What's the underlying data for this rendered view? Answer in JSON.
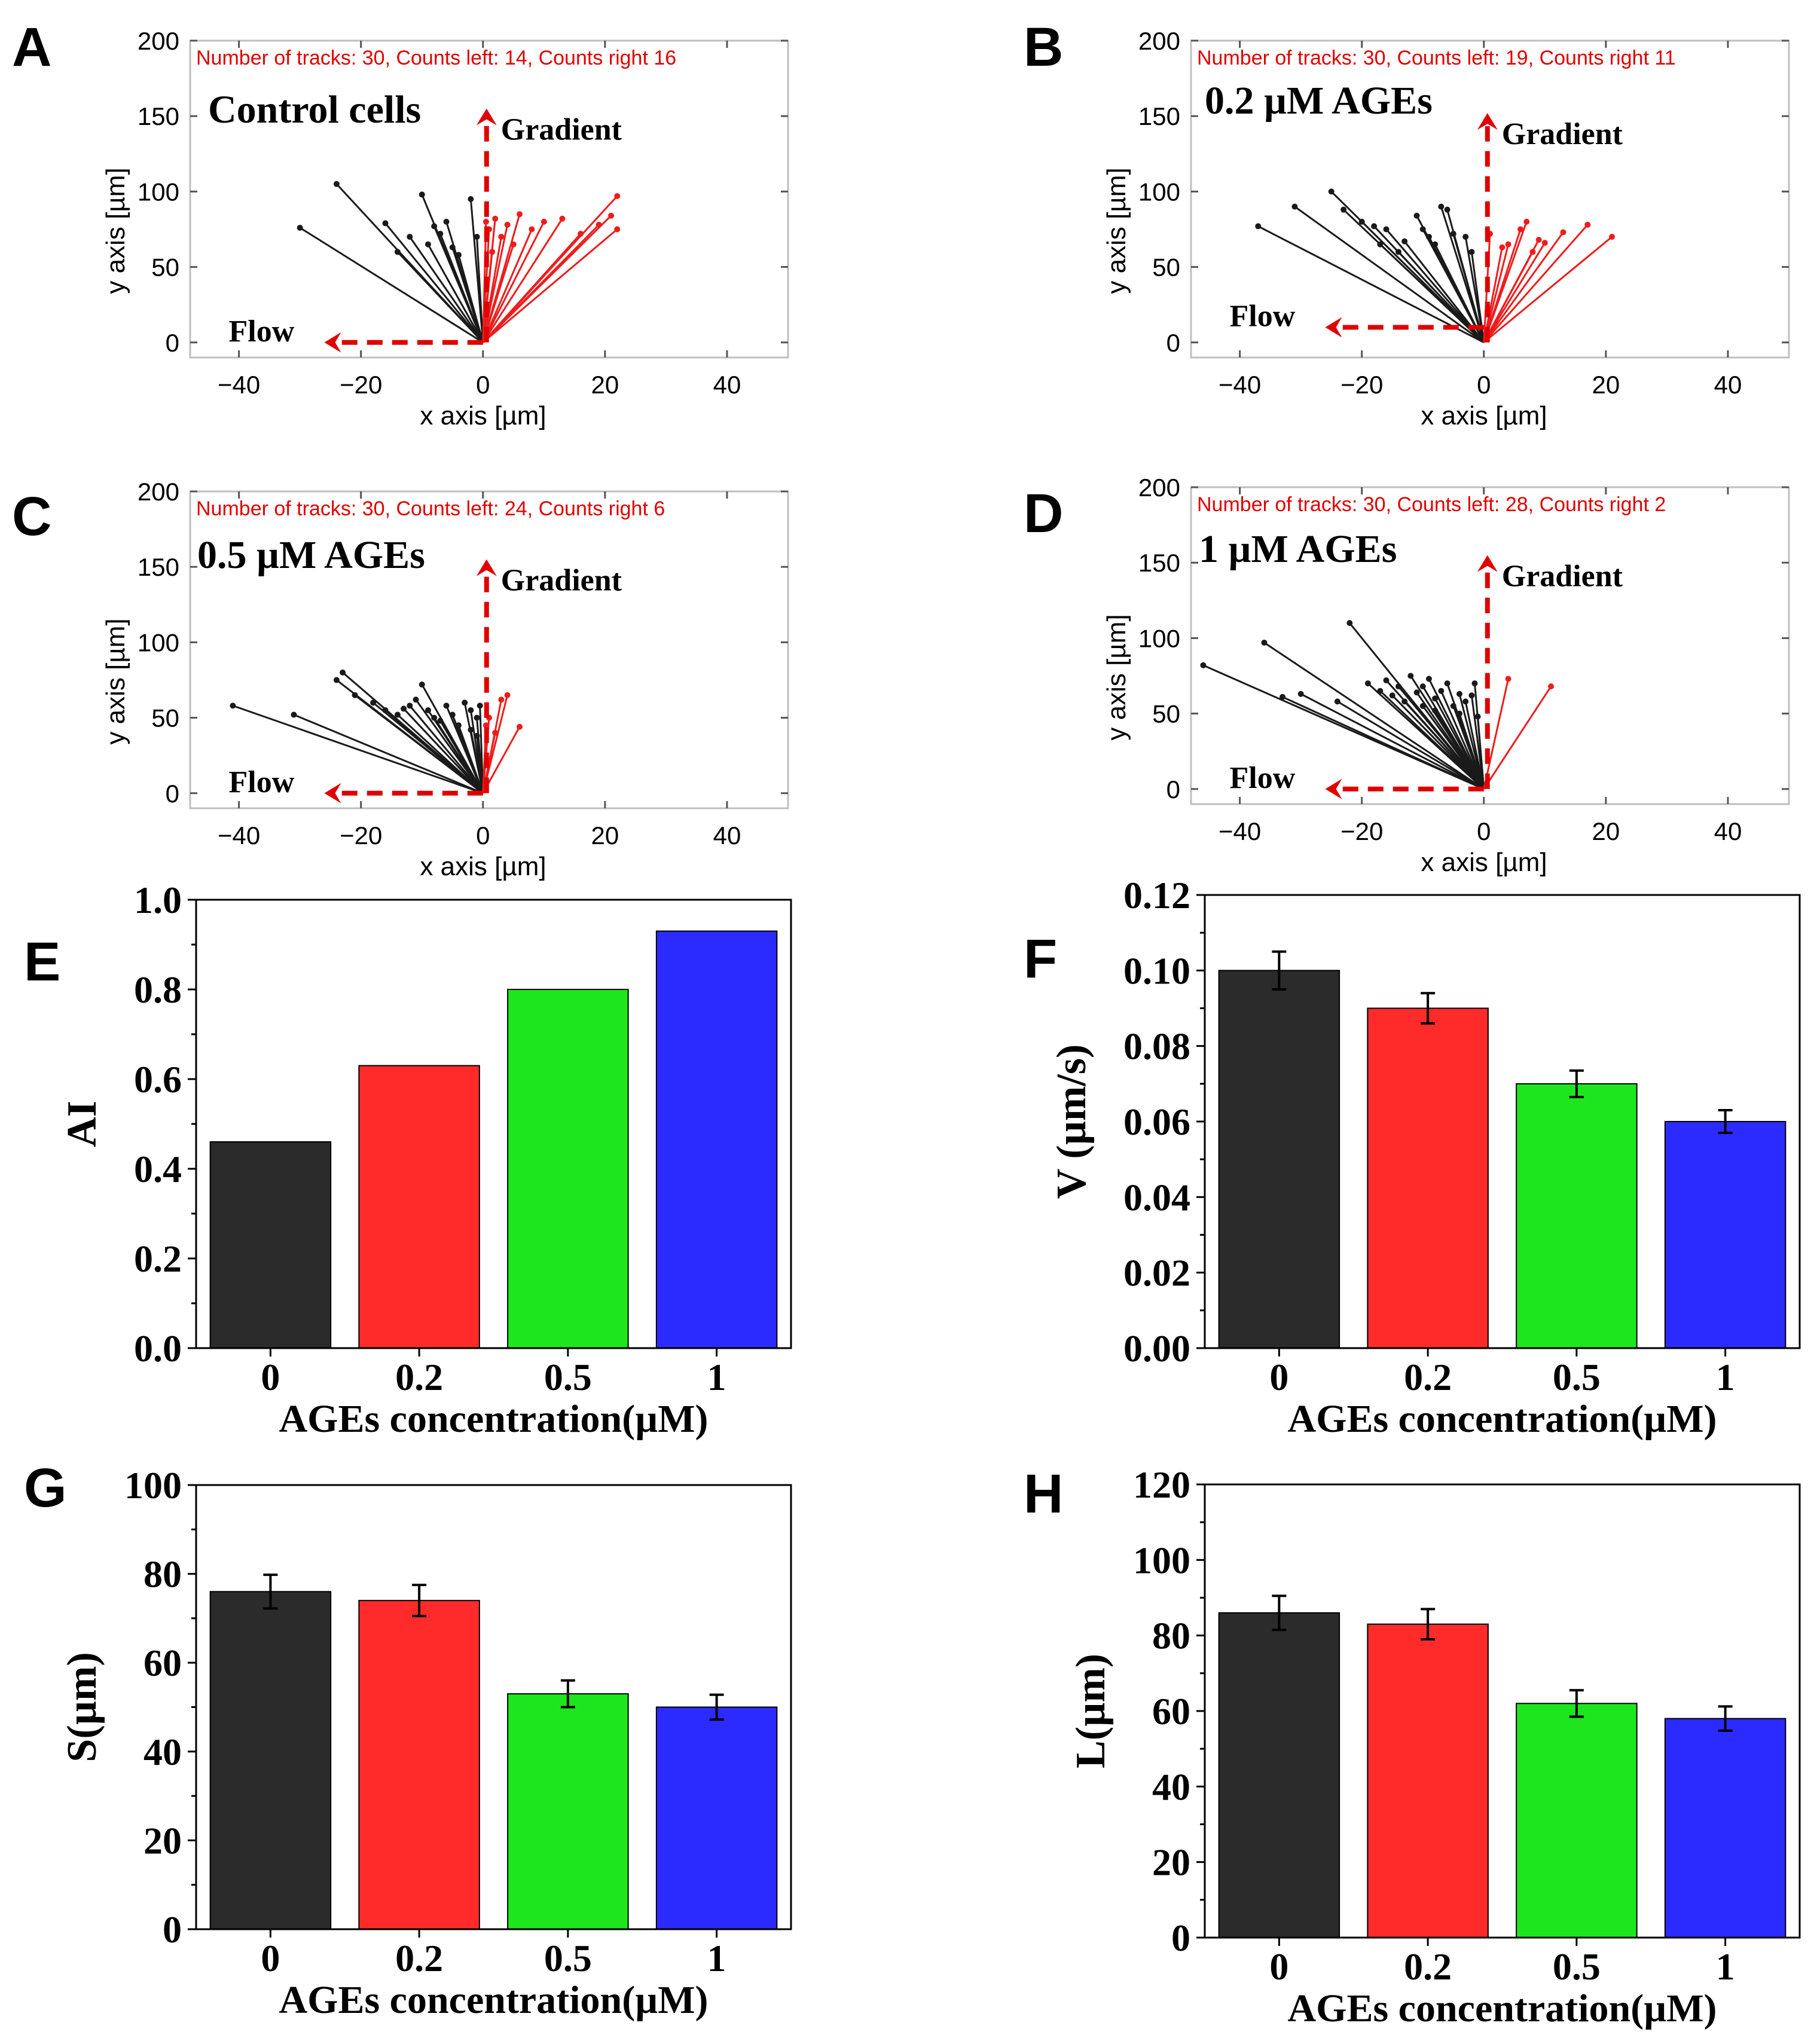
{
  "figure": {
    "colors": {
      "black_track": "#1a1a1a",
      "red_track": "#ee1c1c",
      "bar_0": "#2b2b2b",
      "bar_0_2": "#ff2b2b",
      "bar_0_5": "#1ee61e",
      "bar_1": "#2b2bff",
      "annotation_red": "#e00000",
      "arrow_red": "#e00000"
    }
  },
  "chart_data": [
    {
      "panel": "A",
      "type": "scatter",
      "subtype": "trajectory-plot",
      "title": "Control cells",
      "info": "Number of tracks: 30, Counts left: 14, Counts right 16",
      "xlabel": "x axis [µm]",
      "ylabel": "y axis [µm]",
      "xlim": [
        -48,
        50
      ],
      "ylim": [
        -10,
        200
      ],
      "xticks": [
        -40,
        -20,
        0,
        20,
        40
      ],
      "xtick_labels": [
        "−40",
        "−20",
        "0",
        "20",
        "40"
      ],
      "yticks": [
        0,
        50,
        100,
        150,
        200
      ],
      "ytick_labels": [
        "0",
        "50",
        "100",
        "150",
        "200"
      ],
      "gradient_label": "Gradient",
      "flow_label": "Flow",
      "arrow_gradient_tip": [
        0,
        155
      ],
      "arrow_flow_tip": [
        -26,
        0
      ],
      "tracks_left": [
        [
          -30,
          76
        ],
        [
          -24,
          105
        ],
        [
          -16,
          79
        ],
        [
          -14,
          60
        ],
        [
          -12,
          70
        ],
        [
          -10,
          98
        ],
        [
          -9,
          65
        ],
        [
          -8,
          77
        ],
        [
          -7,
          72
        ],
        [
          -6,
          80
        ],
        [
          -5,
          63
        ],
        [
          -4,
          58
        ],
        [
          -2,
          95
        ],
        [
          -1,
          70
        ]
      ],
      "tracks_right": [
        [
          0.5,
          80
        ],
        [
          1,
          75
        ],
        [
          1.5,
          60
        ],
        [
          2,
          82
        ],
        [
          3,
          70
        ],
        [
          4,
          78
        ],
        [
          5,
          65
        ],
        [
          6,
          85
        ],
        [
          8,
          75
        ],
        [
          10,
          80
        ],
        [
          13,
          82
        ],
        [
          16,
          72
        ],
        [
          19,
          78
        ],
        [
          21,
          84
        ],
        [
          22,
          97
        ],
        [
          22,
          75
        ]
      ]
    },
    {
      "panel": "B",
      "type": "scatter",
      "subtype": "trajectory-plot",
      "title": "0.2 µM AGEs",
      "info": "Number of tracks: 30, Counts left: 19, Counts right 11",
      "xlabel": "x axis [µm]",
      "ylabel": "y axis [µm]",
      "xlim": [
        -48,
        50
      ],
      "ylim": [
        -10,
        200
      ],
      "xticks": [
        -40,
        -20,
        0,
        20,
        40
      ],
      "xtick_labels": [
        "−40",
        "−20",
        "0",
        "20",
        "40"
      ],
      "yticks": [
        0,
        50,
        100,
        150,
        200
      ],
      "ytick_labels": [
        "0",
        "50",
        "100",
        "150",
        "200"
      ],
      "gradient_label": "Gradient",
      "flow_label": "Flow",
      "arrow_gradient_tip": [
        0,
        152
      ],
      "arrow_flow_tip": [
        -26,
        10
      ],
      "tracks_left": [
        [
          -37,
          77
        ],
        [
          -31,
          90
        ],
        [
          -25,
          100
        ],
        [
          -23,
          88
        ],
        [
          -20,
          80
        ],
        [
          -18,
          77
        ],
        [
          -17,
          65
        ],
        [
          -16,
          75
        ],
        [
          -14,
          60
        ],
        [
          -13,
          67
        ],
        [
          -11,
          84
        ],
        [
          -10,
          75
        ],
        [
          -9,
          70
        ],
        [
          -8,
          65
        ],
        [
          -7,
          90
        ],
        [
          -6,
          88
        ],
        [
          -5,
          72
        ],
        [
          -3,
          70
        ],
        [
          -2,
          60
        ]
      ],
      "tracks_right": [
        [
          1,
          72
        ],
        [
          3,
          63
        ],
        [
          4,
          65
        ],
        [
          6,
          75
        ],
        [
          7,
          80
        ],
        [
          8,
          60
        ],
        [
          9,
          68
        ],
        [
          10,
          66
        ],
        [
          13,
          73
        ],
        [
          17,
          78
        ],
        [
          21,
          70
        ]
      ]
    },
    {
      "panel": "C",
      "type": "scatter",
      "subtype": "trajectory-plot",
      "title": "0.5 µM AGEs",
      "info": "Number of tracks: 30, Counts left: 24, Counts right 6",
      "xlabel": "x axis [µm]",
      "ylabel": "y axis [µm]",
      "xlim": [
        -48,
        50
      ],
      "ylim": [
        -10,
        200
      ],
      "xticks": [
        -40,
        -20,
        0,
        20,
        40
      ],
      "xtick_labels": [
        "−40",
        "−20",
        "0",
        "20",
        "40"
      ],
      "yticks": [
        0,
        50,
        100,
        150,
        200
      ],
      "ytick_labels": [
        "0",
        "50",
        "100",
        "150",
        "200"
      ],
      "gradient_label": "Gradient",
      "flow_label": "Flow",
      "arrow_gradient_tip": [
        0,
        155
      ],
      "arrow_flow_tip": [
        -26,
        0
      ],
      "tracks_left": [
        [
          -41,
          58
        ],
        [
          -31,
          52
        ],
        [
          -24,
          75
        ],
        [
          -23,
          80
        ],
        [
          -21,
          65
        ],
        [
          -18,
          60
        ],
        [
          -16,
          55
        ],
        [
          -14,
          52
        ],
        [
          -13,
          56
        ],
        [
          -12,
          58
        ],
        [
          -11,
          62
        ],
        [
          -10,
          72
        ],
        [
          -9,
          55
        ],
        [
          -8,
          50
        ],
        [
          -7,
          48
        ],
        [
          -6,
          58
        ],
        [
          -5,
          52
        ],
        [
          -4,
          45
        ],
        [
          -3,
          60
        ],
        [
          -2,
          55
        ],
        [
          -2,
          42
        ],
        [
          -1,
          50
        ],
        [
          -1,
          38
        ],
        [
          -0.5,
          58
        ]
      ],
      "tracks_right": [
        [
          0.5,
          45
        ],
        [
          1,
          50
        ],
        [
          2,
          40
        ],
        [
          3,
          62
        ],
        [
          4,
          65
        ],
        [
          6,
          44
        ]
      ]
    },
    {
      "panel": "D",
      "type": "scatter",
      "subtype": "trajectory-plot",
      "title": "1 µM AGEs",
      "info": "Number of tracks: 30, Counts left: 28, Counts right 2",
      "xlabel": "x axis [µm]",
      "ylabel": "y axis [µm]",
      "xlim": [
        -48,
        50
      ],
      "ylim": [
        -10,
        200
      ],
      "xticks": [
        -40,
        -20,
        0,
        20,
        40
      ],
      "xtick_labels": [
        "−40",
        "−20",
        "0",
        "20",
        "40"
      ],
      "yticks": [
        0,
        50,
        100,
        150,
        200
      ],
      "ytick_labels": [
        "0",
        "50",
        "100",
        "150",
        "200"
      ],
      "gradient_label": "Gradient",
      "flow_label": "Flow",
      "arrow_gradient_tip": [
        0,
        155
      ],
      "arrow_flow_tip": [
        -26,
        0
      ],
      "tracks_left": [
        [
          -46,
          82
        ],
        [
          -36,
          97
        ],
        [
          -33,
          61
        ],
        [
          -30,
          63
        ],
        [
          -24,
          58
        ],
        [
          -22,
          110
        ],
        [
          -19,
          70
        ],
        [
          -17,
          65
        ],
        [
          -16,
          72
        ],
        [
          -15,
          62
        ],
        [
          -14,
          68
        ],
        [
          -13,
          58
        ],
        [
          -12,
          75
        ],
        [
          -11,
          64
        ],
        [
          -10,
          55
        ],
        [
          -10,
          68
        ],
        [
          -9,
          73
        ],
        [
          -8,
          60
        ],
        [
          -8,
          52
        ],
        [
          -7,
          65
        ],
        [
          -6,
          70
        ],
        [
          -5,
          55
        ],
        [
          -4,
          63
        ],
        [
          -4,
          50
        ],
        [
          -3,
          58
        ],
        [
          -2,
          62
        ],
        [
          -1.5,
          70
        ],
        [
          -1,
          48
        ]
      ],
      "tracks_right": [
        [
          4,
          73
        ],
        [
          11,
          68
        ]
      ]
    },
    {
      "panel": "E",
      "type": "bar",
      "categories": [
        "0",
        "0.2",
        "0.5",
        "1"
      ],
      "values": [
        0.46,
        0.63,
        0.8,
        0.93
      ],
      "errors": null,
      "xlabel": "AGEs concentration(µM)",
      "ylabel": "AI",
      "ylim": [
        0,
        1.0
      ],
      "yticks": [
        0.0,
        0.2,
        0.4,
        0.6,
        0.8,
        1.0
      ],
      "ytick_labels": [
        "0.0",
        "0.2",
        "0.4",
        "0.6",
        "0.8",
        "1.0"
      ]
    },
    {
      "panel": "F",
      "type": "bar",
      "categories": [
        "0",
        "0.2",
        "0.5",
        "1"
      ],
      "values": [
        0.1,
        0.09,
        0.07,
        0.06
      ],
      "errors": [
        0.005,
        0.004,
        0.0035,
        0.003
      ],
      "xlabel": "AGEs concentration(µM)",
      "ylabel": "V (µm/s)",
      "ylim": [
        0,
        0.12
      ],
      "yticks": [
        0.0,
        0.02,
        0.04,
        0.06,
        0.08,
        0.1,
        0.12
      ],
      "ytick_labels": [
        "0.00",
        "0.02",
        "0.04",
        "0.06",
        "0.08",
        "0.10",
        "0.12"
      ]
    },
    {
      "panel": "G",
      "type": "bar",
      "categories": [
        "0",
        "0.2",
        "0.5",
        "1"
      ],
      "values": [
        76,
        74,
        53,
        50
      ],
      "errors": [
        3.8,
        3.5,
        3,
        2.8
      ],
      "xlabel": "AGEs concentration(µM)",
      "ylabel": "S(µm)",
      "ylim": [
        0,
        100
      ],
      "yticks": [
        0,
        20,
        40,
        60,
        80,
        100
      ],
      "ytick_labels": [
        "0",
        "20",
        "40",
        "60",
        "80",
        "100"
      ]
    },
    {
      "panel": "H",
      "type": "bar",
      "categories": [
        "0",
        "0.2",
        "0.5",
        "1"
      ],
      "values": [
        86,
        83,
        62,
        58
      ],
      "errors": [
        4.5,
        4,
        3.5,
        3.2
      ],
      "xlabel": "AGEs concentration(µM)",
      "ylabel": "L(µm)",
      "ylim": [
        0,
        120
      ],
      "yticks": [
        0,
        20,
        40,
        60,
        80,
        100,
        120
      ],
      "ytick_labels": [
        "0",
        "20",
        "40",
        "60",
        "80",
        "100",
        "120"
      ]
    }
  ]
}
